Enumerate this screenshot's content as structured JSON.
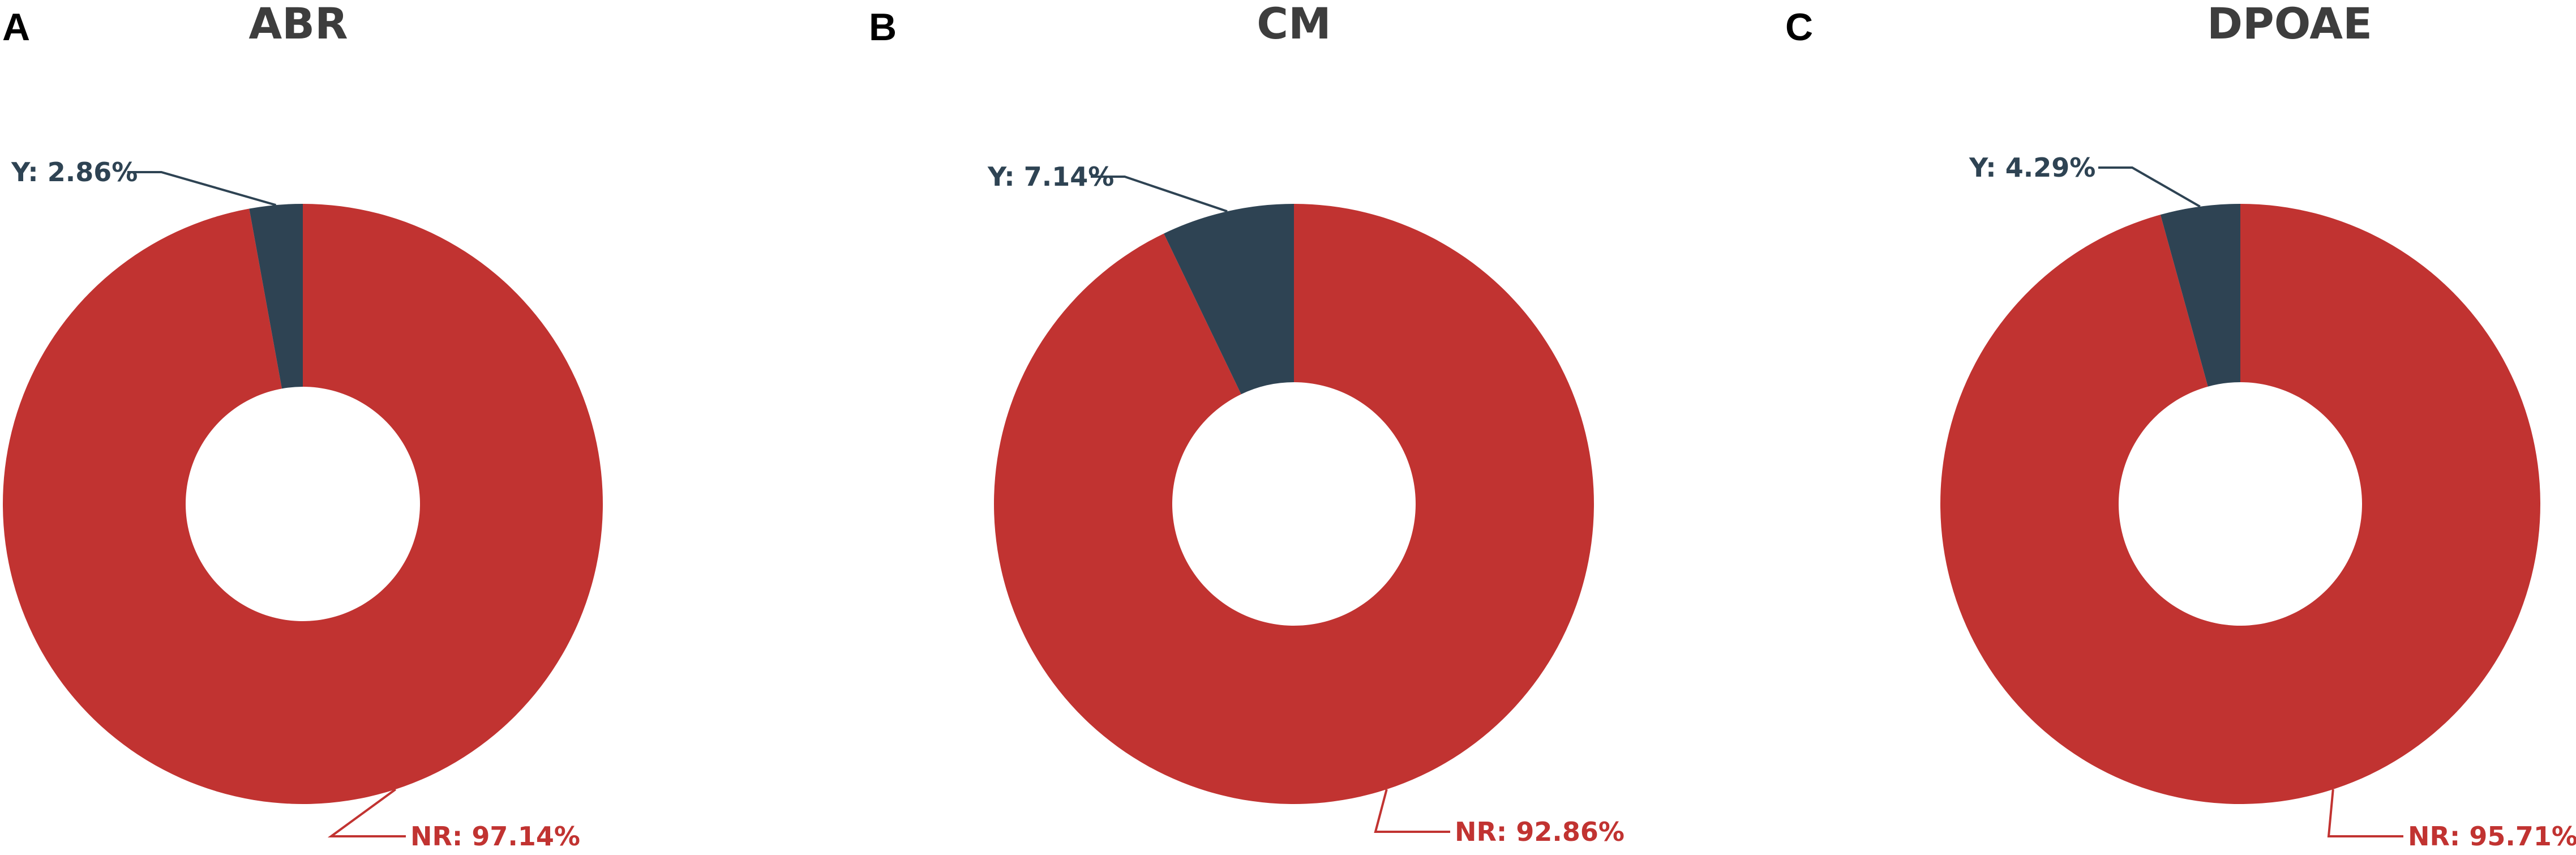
{
  "colors": {
    "nr": "#c13331",
    "y": "#2e4353",
    "title": "#3d3d3d",
    "letter": "#000000"
  },
  "chart_data": [
    {
      "type": "pie",
      "panel": "A",
      "title": "ABR",
      "slices": [
        {
          "category": "Y",
          "value": 2.86,
          "label": "Y: 2.86%",
          "color": "#2e4353"
        },
        {
          "category": "NR",
          "value": 97.14,
          "label": "NR: 97.14%",
          "color": "#c13331"
        }
      ]
    },
    {
      "type": "pie",
      "panel": "B",
      "title": "CM",
      "slices": [
        {
          "category": "Y",
          "value": 7.14,
          "label": "Y: 7.14%",
          "color": "#2e4353"
        },
        {
          "category": "NR",
          "value": 92.86,
          "label": "NR: 92.86%",
          "color": "#c13331"
        }
      ]
    },
    {
      "type": "pie",
      "panel": "C",
      "title": "DPOAE",
      "slices": [
        {
          "category": "Y",
          "value": 4.29,
          "label": "Y: 4.29%",
          "color": "#2e4353"
        },
        {
          "category": "NR",
          "value": 95.71,
          "label": "NR: 95.71%",
          "color": "#c13331"
        }
      ]
    }
  ]
}
